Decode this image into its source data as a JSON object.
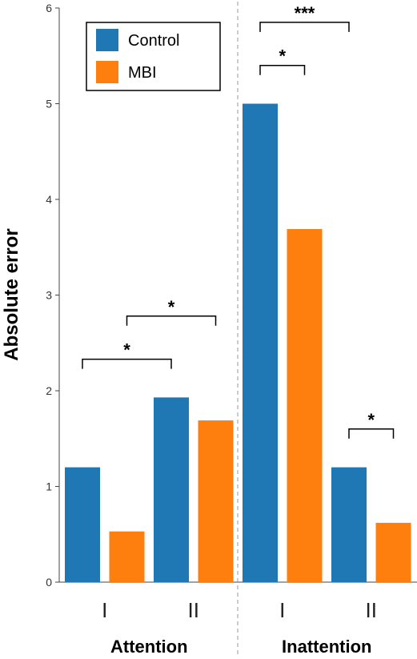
{
  "chart_data": {
    "type": "bar",
    "ylabel": "Absolute error",
    "ylim": [
      0,
      6
    ],
    "yticks": [
      "0",
      "1",
      "2",
      "3",
      "4",
      "5",
      "6"
    ],
    "groups": [
      {
        "label": "Attention",
        "categories": [
          "I",
          "II"
        ]
      },
      {
        "label": "Inattention",
        "categories": [
          "I",
          "II"
        ]
      }
    ],
    "series": [
      {
        "name": "Control",
        "color": "#1f77b4",
        "values": [
          1.2,
          1.93,
          5.0,
          1.2
        ]
      },
      {
        "name": "MBI",
        "color": "#ff7f0e",
        "values": [
          0.53,
          1.69,
          3.69,
          0.62
        ]
      }
    ],
    "legend": {
      "position": "top-left",
      "entries": [
        "Control",
        "MBI"
      ]
    },
    "group_divider": "dashed",
    "grid": false,
    "significance": [
      {
        "from_bar": 0,
        "to_bar": 2,
        "label": "*"
      },
      {
        "from_bar": 1,
        "to_bar": 3,
        "label": "*"
      },
      {
        "from_bar": 4,
        "to_bar": 6,
        "label": "***"
      },
      {
        "from_bar": 4,
        "to_bar": 5,
        "label": "*"
      },
      {
        "from_bar": 5,
        "to_bar": 7,
        "label": "***"
      },
      {
        "from_bar": 6,
        "to_bar": 7,
        "label": "*"
      }
    ]
  }
}
